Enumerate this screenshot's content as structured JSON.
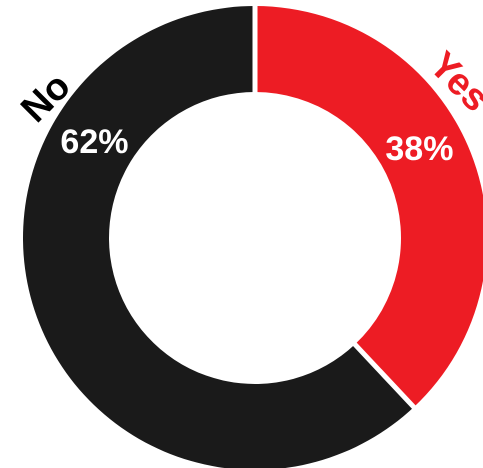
{
  "chart_data": {
    "type": "pie",
    "variant": "donut",
    "title": "",
    "categories": [
      "Yes",
      "No"
    ],
    "values": [
      38,
      62
    ],
    "value_labels": [
      "38%",
      "62%"
    ],
    "colors": [
      "#ed1c24",
      "#1a1a1a"
    ],
    "category_label_colors": [
      "#ed1c24",
      "#000000"
    ],
    "legend": "none",
    "start_angle_deg": 0,
    "direction": "clockwise"
  }
}
